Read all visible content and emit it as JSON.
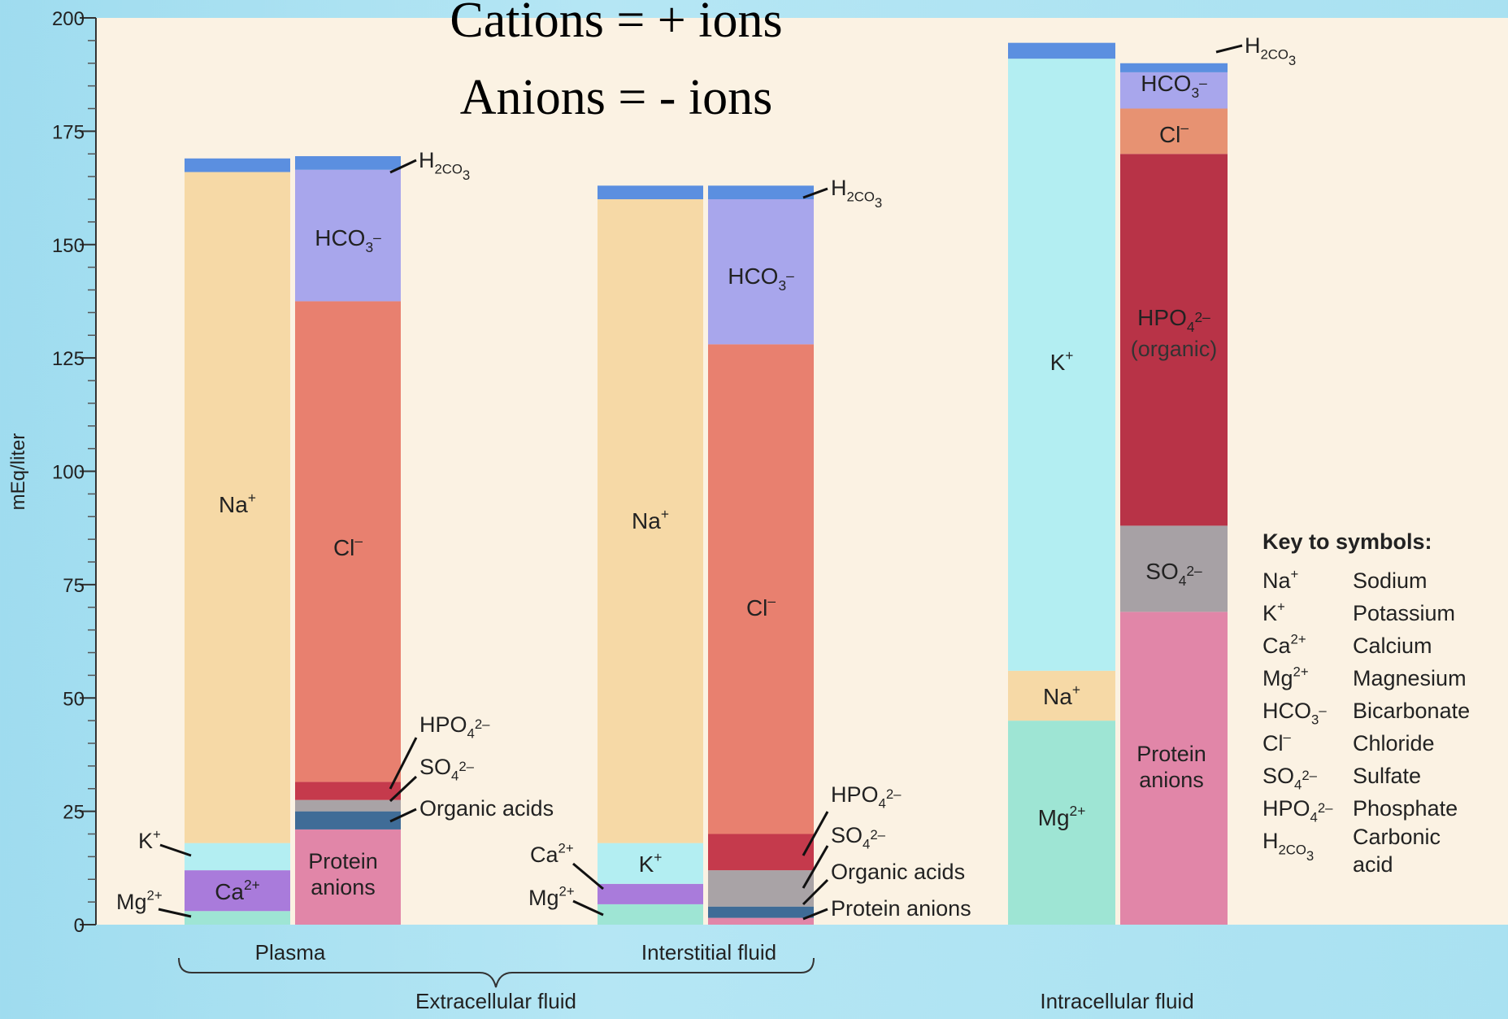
{
  "chart_data": {
    "type": "bar",
    "stacked": true,
    "title_lines": [
      "Cations = + ions",
      "Anions = - ions"
    ],
    "ylabel": "mEq/liter",
    "ylim": [
      0,
      200
    ],
    "yticks": [
      0,
      25,
      50,
      75,
      100,
      125,
      150,
      175,
      200
    ],
    "grid": false,
    "legend_position": "right",
    "groups": [
      {
        "label": "Plasma",
        "parent": "Extracellular fluid"
      },
      {
        "label": "Interstitial fluid",
        "parent": "Extracellular fluid"
      },
      {
        "label": "",
        "parent": "Intracellular fluid"
      }
    ],
    "group_labels": {
      "plasma": "Plasma",
      "interstitial": "Interstitial fluid",
      "extracellular": "Extracellular fluid",
      "intracellular": "Intracellular fluid"
    },
    "colors": {
      "Na": "#f6d9a6",
      "K": "#b3eef2",
      "Ca": "#a97bdb",
      "Mg": "#9ee5d4",
      "H2CO3": "#5b8fe0",
      "HCO3": "#a8a6ec",
      "Cl": "#e8806f",
      "HPO4": "#c53a4c",
      "SO4": "#a9a3a6",
      "Organic": "#3f6c97",
      "Protein": "#e186a8",
      "HPO4org": "#b83347",
      "SO4ic": "#a7a1a5",
      "Clic": "#e79272"
    },
    "columns": [
      {
        "fluid": "Plasma",
        "side": "cations",
        "segments": [
          {
            "ion": "Mg",
            "label": "Mg2+",
            "value": 3
          },
          {
            "ion": "Ca",
            "label": "Ca2+",
            "value": 9
          },
          {
            "ion": "K",
            "label": "K+",
            "value": 6
          },
          {
            "ion": "Na",
            "label": "Na+",
            "value": 148
          },
          {
            "ion": "H2CO3",
            "label": "",
            "value": 3
          }
        ]
      },
      {
        "fluid": "Plasma",
        "side": "anions",
        "segments": [
          {
            "ion": "Protein",
            "label": "Protein anions",
            "value": 21
          },
          {
            "ion": "Organic",
            "label": "Organic acids",
            "value": 4
          },
          {
            "ion": "SO4",
            "label": "SO4 2-",
            "value": 2.5
          },
          {
            "ion": "HPO4",
            "label": "HPO4 2-",
            "value": 4
          },
          {
            "ion": "Cl",
            "label": "Cl-",
            "value": 106
          },
          {
            "ion": "HCO3",
            "label": "HCO3-",
            "value": 29
          },
          {
            "ion": "H2CO3",
            "label": "H2CO3",
            "value": 3
          }
        ]
      },
      {
        "fluid": "Interstitial fluid",
        "side": "cations",
        "segments": [
          {
            "ion": "Mg",
            "label": "Mg2+",
            "value": 4.5
          },
          {
            "ion": "Ca",
            "label": "Ca2+",
            "value": 4.5
          },
          {
            "ion": "K",
            "label": "K+",
            "value": 9
          },
          {
            "ion": "Na",
            "label": "Na+",
            "value": 142
          },
          {
            "ion": "H2CO3",
            "label": "",
            "value": 3
          }
        ]
      },
      {
        "fluid": "Interstitial fluid",
        "side": "anions",
        "segments": [
          {
            "ion": "Protein",
            "label": "Protein anions",
            "value": 1.5
          },
          {
            "ion": "Organic",
            "label": "Organic acids",
            "value": 2.5
          },
          {
            "ion": "SO4",
            "label": "SO4 2-",
            "value": 8
          },
          {
            "ion": "HPO4",
            "label": "HPO4 2-",
            "value": 8
          },
          {
            "ion": "Cl",
            "label": "Cl-",
            "value": 108
          },
          {
            "ion": "HCO3",
            "label": "HCO3-",
            "value": 32
          },
          {
            "ion": "H2CO3",
            "label": "H2CO3",
            "value": 3
          }
        ]
      },
      {
        "fluid": "Intracellular fluid",
        "side": "cations",
        "segments": [
          {
            "ion": "Mg",
            "label": "Mg2+",
            "value": 45
          },
          {
            "ion": "Na",
            "label": "Na+",
            "value": 11
          },
          {
            "ion": "K",
            "label": "K+",
            "value": 135
          },
          {
            "ion": "H2CO3",
            "label": "",
            "value": 3.5
          }
        ]
      },
      {
        "fluid": "Intracellular fluid",
        "side": "anions",
        "segments": [
          {
            "ion": "Protein",
            "label": "Protein anions",
            "value": 69
          },
          {
            "ion": "SO4ic",
            "label": "SO4 2-",
            "value": 19
          },
          {
            "ion": "HPO4org",
            "label": "HPO4 2- (organic)",
            "value": 82
          },
          {
            "ion": "Clic",
            "label": "Cl-",
            "value": 10
          },
          {
            "ion": "HCO3",
            "label": "HCO3-",
            "value": 8
          },
          {
            "ion": "H2CO3",
            "label": "H2CO3",
            "value": 2
          }
        ]
      }
    ],
    "key": {
      "title": "Key to symbols:",
      "entries": [
        {
          "symbol": "Na+",
          "name": "Sodium"
        },
        {
          "symbol": "K+",
          "name": "Potassium"
        },
        {
          "symbol": "Ca2+",
          "name": "Calcium"
        },
        {
          "symbol": "Mg2+",
          "name": "Magnesium"
        },
        {
          "symbol": "HCO3-",
          "name": "Bicarbonate"
        },
        {
          "symbol": "Cl-",
          "name": "Chloride"
        },
        {
          "symbol": "SO4 2-",
          "name": "Sulfate"
        },
        {
          "symbol": "HPO4 2-",
          "name": "Phosphate"
        },
        {
          "symbol": "H2CO3",
          "name": "Carbonic acid"
        }
      ]
    },
    "annotations": {
      "h2co3": "H2CO3",
      "hpo4": "HPO4 2-",
      "so4": "SO4 2-",
      "organic_acids": "Organic acids",
      "protein_anions": "Protein anions",
      "protein_anions_line1": "Protein",
      "protein_anions_line2": "anions",
      "organic_word": "(organic)"
    }
  }
}
